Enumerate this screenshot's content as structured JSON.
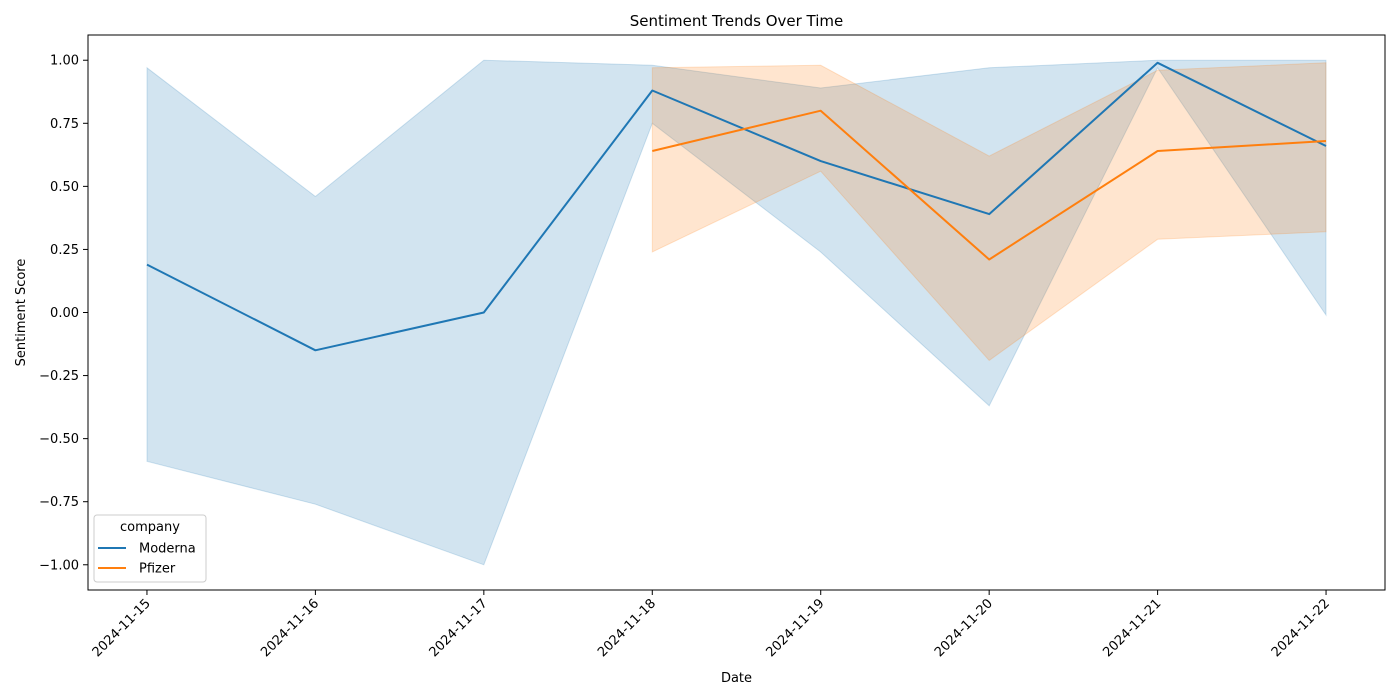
{
  "chart_data": {
    "type": "line",
    "title": "Sentiment Trends Over Time",
    "xlabel": "Date",
    "ylabel": "Sentiment Score",
    "x": [
      "2024-11-15",
      "2024-11-16",
      "2024-11-17",
      "2024-11-18",
      "2024-11-19",
      "2024-11-20",
      "2024-11-21",
      "2024-11-22"
    ],
    "ylim": [
      -1.1,
      1.1
    ],
    "yticks": [
      -1.0,
      -0.75,
      -0.5,
      -0.25,
      0.0,
      0.25,
      0.5,
      0.75,
      1.0
    ],
    "ytick_labels": [
      "−1.00",
      "−0.75",
      "−0.50",
      "−0.25",
      "0.00",
      "0.25",
      "0.50",
      "0.75",
      "1.00"
    ],
    "grid": false,
    "legend": {
      "title": "company",
      "placement": "lower-left"
    },
    "series": [
      {
        "name": "Moderna",
        "color": "#1f77b4",
        "x": [
          "2024-11-15",
          "2024-11-16",
          "2024-11-17",
          "2024-11-18",
          "2024-11-19",
          "2024-11-20",
          "2024-11-21",
          "2024-11-22"
        ],
        "values": [
          0.19,
          -0.15,
          0.0,
          0.88,
          0.6,
          0.39,
          0.99,
          0.66
        ],
        "ci_lower": [
          -0.59,
          -0.76,
          -1.0,
          0.75,
          0.24,
          -0.37,
          0.97,
          -0.01
        ],
        "ci_upper": [
          0.97,
          0.46,
          1.0,
          0.98,
          0.89,
          0.97,
          1.0,
          1.0
        ]
      },
      {
        "name": "Pfizer",
        "color": "#ff7f0e",
        "x": [
          "2024-11-18",
          "2024-11-19",
          "2024-11-20",
          "2024-11-21",
          "2024-11-22"
        ],
        "values": [
          0.64,
          0.8,
          0.21,
          0.64,
          0.68
        ],
        "ci_lower": [
          0.24,
          0.56,
          -0.19,
          0.29,
          0.32
        ],
        "ci_upper": [
          0.97,
          0.98,
          0.62,
          0.96,
          0.99
        ]
      }
    ]
  }
}
